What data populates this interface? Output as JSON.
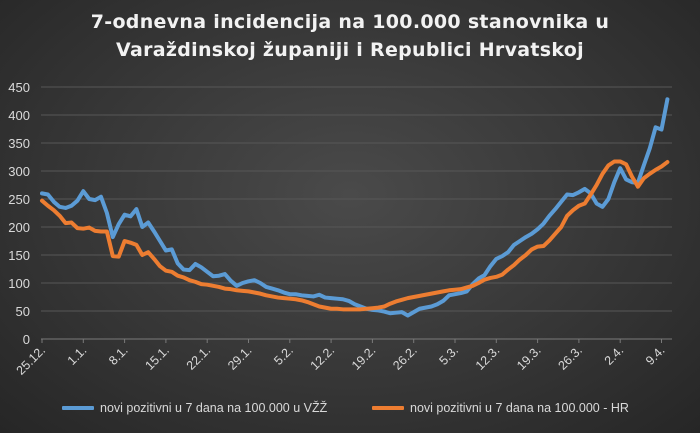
{
  "chart_data": {
    "type": "line",
    "title": "7-odnevna incidencija na 100.000 stanovnika u Varaždinskoj županiji i Republici Hrvatskoj",
    "title_lines": [
      "7-odnevna incidencija na 100.000 stanovnika u",
      "Varaždinskoj županiji i Republici Hrvatskoj"
    ],
    "xlabel": "",
    "ylabel": "",
    "ylim": [
      0,
      450
    ],
    "yticks": [
      0,
      50,
      100,
      150,
      200,
      250,
      300,
      350,
      400,
      450
    ],
    "xticks": [
      "25.12.",
      "1.1.",
      "8.1.",
      "15.1.",
      "22.1.",
      "29.1.",
      "5.2.",
      "12.2.",
      "19.2.",
      "26.2.",
      "5.3.",
      "12.3.",
      "19.3.",
      "26.3.",
      "2.4.",
      "9.4."
    ],
    "grid": true,
    "legend_position": "bottom",
    "background": "#3a3a3a",
    "x": [
      "25.12.",
      "26.12.",
      "27.12.",
      "28.12.",
      "29.12.",
      "30.12.",
      "31.12.",
      "1.1.",
      "2.1.",
      "3.1.",
      "4.1.",
      "5.1.",
      "6.1.",
      "7.1.",
      "8.1.",
      "9.1.",
      "10.1.",
      "11.1.",
      "12.1.",
      "13.1.",
      "14.1.",
      "15.1.",
      "16.1.",
      "17.1.",
      "18.1.",
      "19.1.",
      "20.1.",
      "21.1.",
      "22.1.",
      "23.1.",
      "24.1.",
      "25.1.",
      "26.1.",
      "27.1.",
      "28.1.",
      "29.1.",
      "30.1.",
      "31.1.",
      "1.2.",
      "2.2.",
      "3.2.",
      "4.2.",
      "5.2.",
      "6.2.",
      "7.2.",
      "8.2.",
      "9.2.",
      "10.2.",
      "11.2.",
      "12.2.",
      "13.2.",
      "14.2.",
      "15.2.",
      "16.2.",
      "17.2.",
      "18.2.",
      "19.2.",
      "20.2.",
      "21.2.",
      "22.2.",
      "23.2.",
      "24.2.",
      "25.2.",
      "26.2.",
      "27.2.",
      "28.2.",
      "1.3.",
      "2.3.",
      "3.3.",
      "4.3.",
      "5.3.",
      "6.3.",
      "7.3.",
      "8.3.",
      "9.3.",
      "10.3.",
      "11.3.",
      "12.3.",
      "13.3.",
      "14.3.",
      "15.3.",
      "16.3.",
      "17.3.",
      "18.3.",
      "19.3.",
      "20.3.",
      "21.3.",
      "22.3.",
      "23.3.",
      "24.3.",
      "25.3.",
      "26.3.",
      "27.3.",
      "28.3.",
      "29.3.",
      "30.3.",
      "31.3.",
      "1.4.",
      "2.4.",
      "3.4.",
      "4.4.",
      "5.4.",
      "6.4.",
      "7.4.",
      "8.4.",
      "9.4.",
      "10.4."
    ],
    "series": [
      {
        "name": "novi pozitivni u 7 dana na 100.000 u VŽŽ",
        "color": "#5b9bd5",
        "values": [
          260,
          258,
          245,
          236,
          234,
          238,
          247,
          264,
          250,
          248,
          254,
          225,
          182,
          205,
          222,
          219,
          232,
          200,
          208,
          192,
          175,
          158,
          160,
          135,
          124,
          123,
          134,
          128,
          120,
          112,
          113,
          116,
          104,
          95,
          100,
          103,
          105,
          100,
          93,
          90,
          87,
          83,
          80,
          80,
          78,
          77,
          76,
          79,
          74,
          73,
          72,
          71,
          68,
          62,
          58,
          54,
          52,
          51,
          49,
          46,
          47,
          48,
          42,
          48,
          54,
          56,
          58,
          62,
          68,
          78,
          80,
          82,
          85,
          98,
          108,
          114,
          130,
          143,
          148,
          155,
          168,
          175,
          182,
          188,
          196,
          206,
          220,
          232,
          245,
          258,
          257,
          262,
          268,
          260,
          242,
          236,
          250,
          280,
          305,
          285,
          280,
          279,
          310,
          340,
          378,
          374,
          428
        ]
      },
      {
        "name": "novi pozitivni u 7 dana na 100.000 - HR",
        "color": "#ed7d31",
        "values": [
          247,
          238,
          230,
          220,
          207,
          208,
          198,
          197,
          199,
          193,
          192,
          192,
          148,
          147,
          175,
          172,
          168,
          150,
          155,
          143,
          130,
          122,
          120,
          113,
          110,
          105,
          102,
          98,
          97,
          95,
          93,
          90,
          89,
          87,
          86,
          85,
          83,
          81,
          78,
          76,
          74,
          73,
          72,
          71,
          69,
          66,
          62,
          58,
          56,
          54,
          54,
          53,
          53,
          53,
          53,
          54,
          55,
          56,
          58,
          63,
          67,
          70,
          73,
          75,
          77,
          79,
          81,
          83,
          85,
          87,
          88,
          89,
          92,
          95,
          100,
          106,
          109,
          111,
          115,
          124,
          132,
          142,
          150,
          160,
          165,
          166,
          176,
          188,
          200,
          220,
          230,
          238,
          242,
          258,
          275,
          295,
          310,
          317,
          317,
          312,
          290,
          272,
          287,
          295,
          302,
          308,
          316
        ]
      }
    ]
  }
}
